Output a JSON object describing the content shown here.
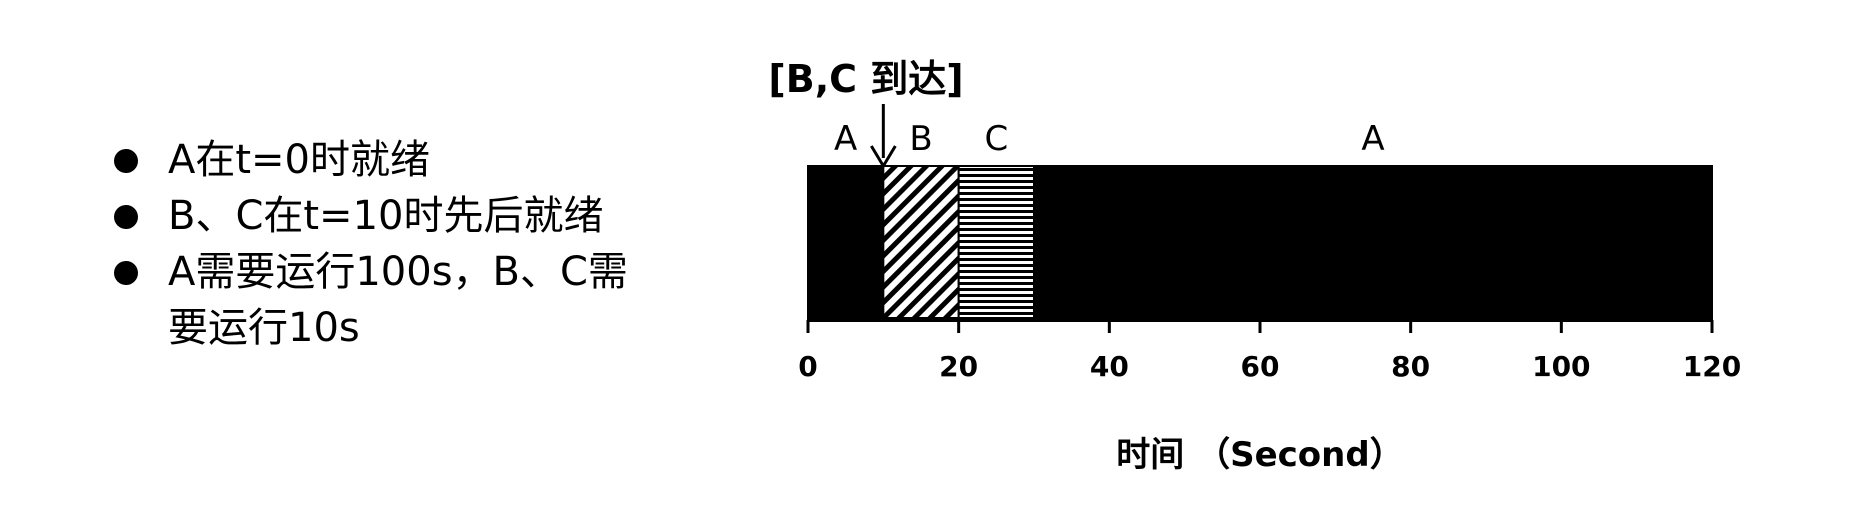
{
  "bullets": [
    {
      "line1": "A在t=0时就绪",
      "line2": ""
    },
    {
      "line1": "B、C在t=10时先后就绪",
      "line2": ""
    },
    {
      "line1": "A需要运行100s，B、C需",
      "line2": "要运行10s"
    }
  ],
  "chart_data": {
    "type": "gantt",
    "annotation": {
      "text": "[B,C 到达]",
      "x": 10
    },
    "segments": [
      {
        "label": "A",
        "start": 0,
        "end": 10,
        "fill": "solid"
      },
      {
        "label": "B",
        "start": 10,
        "end": 20,
        "fill": "diagonal"
      },
      {
        "label": "C",
        "start": 20,
        "end": 30,
        "fill": "horizontal"
      },
      {
        "label": "A",
        "start": 30,
        "end": 120,
        "fill": "solid"
      }
    ],
    "x_ticks": [
      0,
      20,
      40,
      60,
      80,
      100,
      120
    ],
    "xlim": [
      0,
      120
    ],
    "xlabel": "时间 （Second）"
  },
  "colors": {
    "fill": "#000000",
    "background": "#ffffff"
  }
}
